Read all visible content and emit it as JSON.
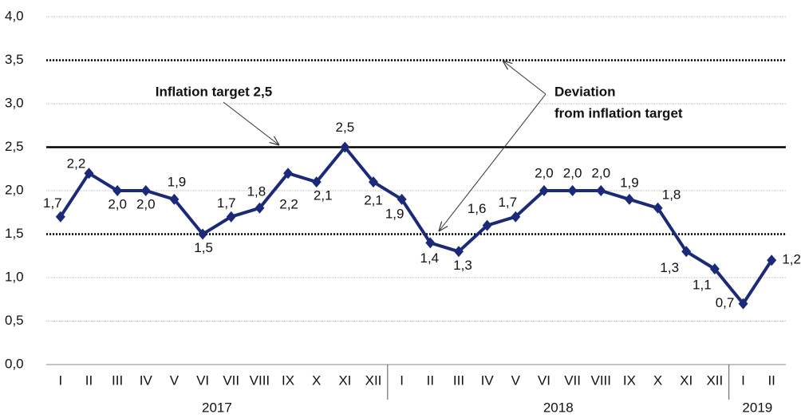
{
  "chart_data": {
    "type": "line",
    "categories": [
      "I",
      "II",
      "III",
      "IV",
      "V",
      "VI",
      "VII",
      "VIII",
      "IX",
      "X",
      "XI",
      "XII",
      "I",
      "II",
      "III",
      "IV",
      "V",
      "VI",
      "VII",
      "VIII",
      "IX",
      "X",
      "XI",
      "XII",
      "I",
      "II"
    ],
    "years": [
      "2017",
      "2018",
      "2019"
    ],
    "values": [
      1.7,
      2.2,
      2.0,
      2.0,
      1.9,
      1.5,
      1.7,
      1.8,
      2.2,
      2.1,
      2.5,
      2.1,
      1.9,
      1.4,
      1.3,
      1.6,
      1.7,
      2.0,
      2.0,
      2.0,
      1.9,
      1.8,
      1.3,
      1.1,
      0.7,
      1.2
    ],
    "value_labels": [
      "1,7",
      "2,2",
      "2,0",
      "2,0",
      "1,9",
      "1,5",
      "1,7",
      "1,8",
      "2,2",
      "2,1",
      "2,5",
      "2,1",
      "1,9",
      "1,4",
      "1,3",
      "1,6",
      "1,7",
      "2,0",
      "2,0",
      "2,0",
      "1,9",
      "1,8",
      "1,3",
      "1,1",
      "0,7",
      "1,2"
    ],
    "color": "#1b2a78",
    "ylim": [
      0,
      4
    ],
    "yticks": [
      {
        "value": 0,
        "label": "0,0"
      },
      {
        "value": 0.5,
        "label": "0,5"
      },
      {
        "value": 1,
        "label": "1,0"
      },
      {
        "value": 1.5,
        "label": "1,5"
      },
      {
        "value": 2,
        "label": "2,0"
      },
      {
        "value": 2.5,
        "label": "2,5"
      },
      {
        "value": 3,
        "label": "3,0"
      },
      {
        "value": 3.5,
        "label": "3,5"
      },
      {
        "value": 4,
        "label": "4,0"
      }
    ],
    "grid": true,
    "reference_lines": [
      {
        "value": 2.5,
        "style": "solid",
        "label": "Inflation target 2,5"
      },
      {
        "value": 3.5,
        "style": "dotted"
      },
      {
        "value": 1.5,
        "style": "dotted"
      }
    ],
    "deviation_label": [
      "Deviation",
      "from inflation target"
    ]
  }
}
